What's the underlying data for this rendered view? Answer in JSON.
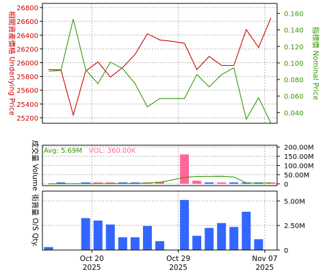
{
  "chart_data": [
    {
      "type": "line",
      "ylabel_left": "相關資產價格 Underlying Price",
      "ylabel_right": "指標價 Nominal Price",
      "left_ticks": [
        25200,
        25400,
        25600,
        25800,
        26000,
        26200,
        26400,
        26600,
        26800
      ],
      "right_ticks": [
        "0.040",
        "0.060",
        "0.080",
        "0.100",
        "0.120",
        "0.140",
        "0.160"
      ],
      "left_ylim": [
        25120,
        26860
      ],
      "right_ylim": [
        0.027,
        0.172
      ],
      "grid": true,
      "series": [
        {
          "axis": "left",
          "color": "#cc0000",
          "values": [
            25900,
            25895,
            25240,
            25880,
            26010,
            25790,
            25930,
            26120,
            26420,
            26330,
            26310,
            26280,
            25900,
            26090,
            25960,
            25960,
            26480,
            26220,
            26650
          ]
        },
        {
          "axis": "right",
          "color": "#339900",
          "values": [
            0.09,
            0.091,
            0.153,
            0.092,
            0.075,
            0.101,
            0.093,
            0.075,
            0.047,
            0.057,
            0.057,
            0.057,
            0.086,
            0.071,
            0.086,
            0.094,
            0.032,
            0.058,
            0.027
          ]
        }
      ]
    },
    {
      "type": "bar",
      "ylabel": "成交量 Volume",
      "right_ticks": [
        "0",
        "50.00M",
        "100.00M",
        "150.00M",
        "200.00M"
      ],
      "ylim": [
        -10,
        210
      ],
      "unit": "M",
      "avg_label": "Avg: 5.69M",
      "vol_label": "VOL: 360.00K",
      "grid": true,
      "bars": [
        {
          "value": 0,
          "color": "#ff6699"
        },
        {
          "value": 2.2,
          "color": "#3366ff"
        },
        {
          "value": 0,
          "color": "#ff6699"
        },
        {
          "value": 2.5,
          "color": "#3366ff"
        },
        {
          "value": 4.5,
          "color": "#ff6699"
        },
        {
          "value": 2.5,
          "color": "#ff6699"
        },
        {
          "value": 1.5,
          "color": "#3366ff"
        },
        {
          "value": 1.0,
          "color": "#3366ff"
        },
        {
          "value": 3.0,
          "color": "#ff6699"
        },
        {
          "value": 11.0,
          "color": "#ff6699"
        },
        {
          "value": 0,
          "color": "#ff6699"
        },
        {
          "value": 160.0,
          "color": "#ff6699"
        },
        {
          "value": 17.0,
          "color": "#ff6699"
        },
        {
          "value": 2.5,
          "color": "#3366ff"
        },
        {
          "value": 4.0,
          "color": "#ff6699"
        },
        {
          "value": 1.0,
          "color": "#3366ff"
        },
        {
          "value": 3.0,
          "color": "#3366ff"
        },
        {
          "value": 1.5,
          "color": "#3366ff"
        },
        {
          "value": 0.36,
          "color": "#ff6699"
        }
      ],
      "avg_line": [
        0,
        0.5,
        0.8,
        1.0,
        1.3,
        1.6,
        1.8,
        2.0,
        4.0,
        8.0,
        21.0,
        35.0,
        40.0,
        40.5,
        41.0,
        37.0,
        5.0,
        4.8,
        4.6
      ]
    },
    {
      "type": "bar",
      "ylabel": "街貨量 O/S Qty.",
      "right_ticks": [
        "0",
        "2.50M",
        "5.00M"
      ],
      "ylim": [
        0,
        6.0
      ],
      "unit": "M",
      "grid": true,
      "bars": [
        {
          "value": 0.3,
          "color": "#3366ff"
        },
        {
          "value": 0,
          "color": "#3366ff"
        },
        {
          "value": 0,
          "color": "#3366ff"
        },
        {
          "value": 3.25,
          "color": "#3366ff"
        },
        {
          "value": 3.0,
          "color": "#3366ff"
        },
        {
          "value": 2.6,
          "color": "#3366ff"
        },
        {
          "value": 1.3,
          "color": "#3366ff"
        },
        {
          "value": 1.3,
          "color": "#3366ff"
        },
        {
          "value": 2.45,
          "color": "#3366ff"
        },
        {
          "value": 0.9,
          "color": "#3366ff"
        },
        {
          "value": 0,
          "color": "#3366ff"
        },
        {
          "value": 5.1,
          "color": "#3366ff"
        },
        {
          "value": 1.45,
          "color": "#3366ff"
        },
        {
          "value": 2.25,
          "color": "#3366ff"
        },
        {
          "value": 2.75,
          "color": "#3366ff"
        },
        {
          "value": 2.35,
          "color": "#3366ff"
        },
        {
          "value": 3.9,
          "color": "#3366ff"
        },
        {
          "value": 1.1,
          "color": "#3366ff"
        },
        {
          "value": 0,
          "color": "#3366ff"
        }
      ]
    }
  ],
  "x_axis": {
    "labels": [
      {
        "index": 3.5,
        "month": "Oct 20",
        "year": "2025"
      },
      {
        "index": 10.5,
        "month": "Oct 29",
        "year": "2025"
      },
      {
        "index": 17.5,
        "month": "Nov 07",
        "year": "2025"
      }
    ]
  },
  "colors": {
    "left_axis_text": "#cc0000",
    "right_axis_text_top": "#339900",
    "pink_text": "#ff6699",
    "green_text": "#339900",
    "grid": "#b0b0b0",
    "frame": "#000000"
  }
}
